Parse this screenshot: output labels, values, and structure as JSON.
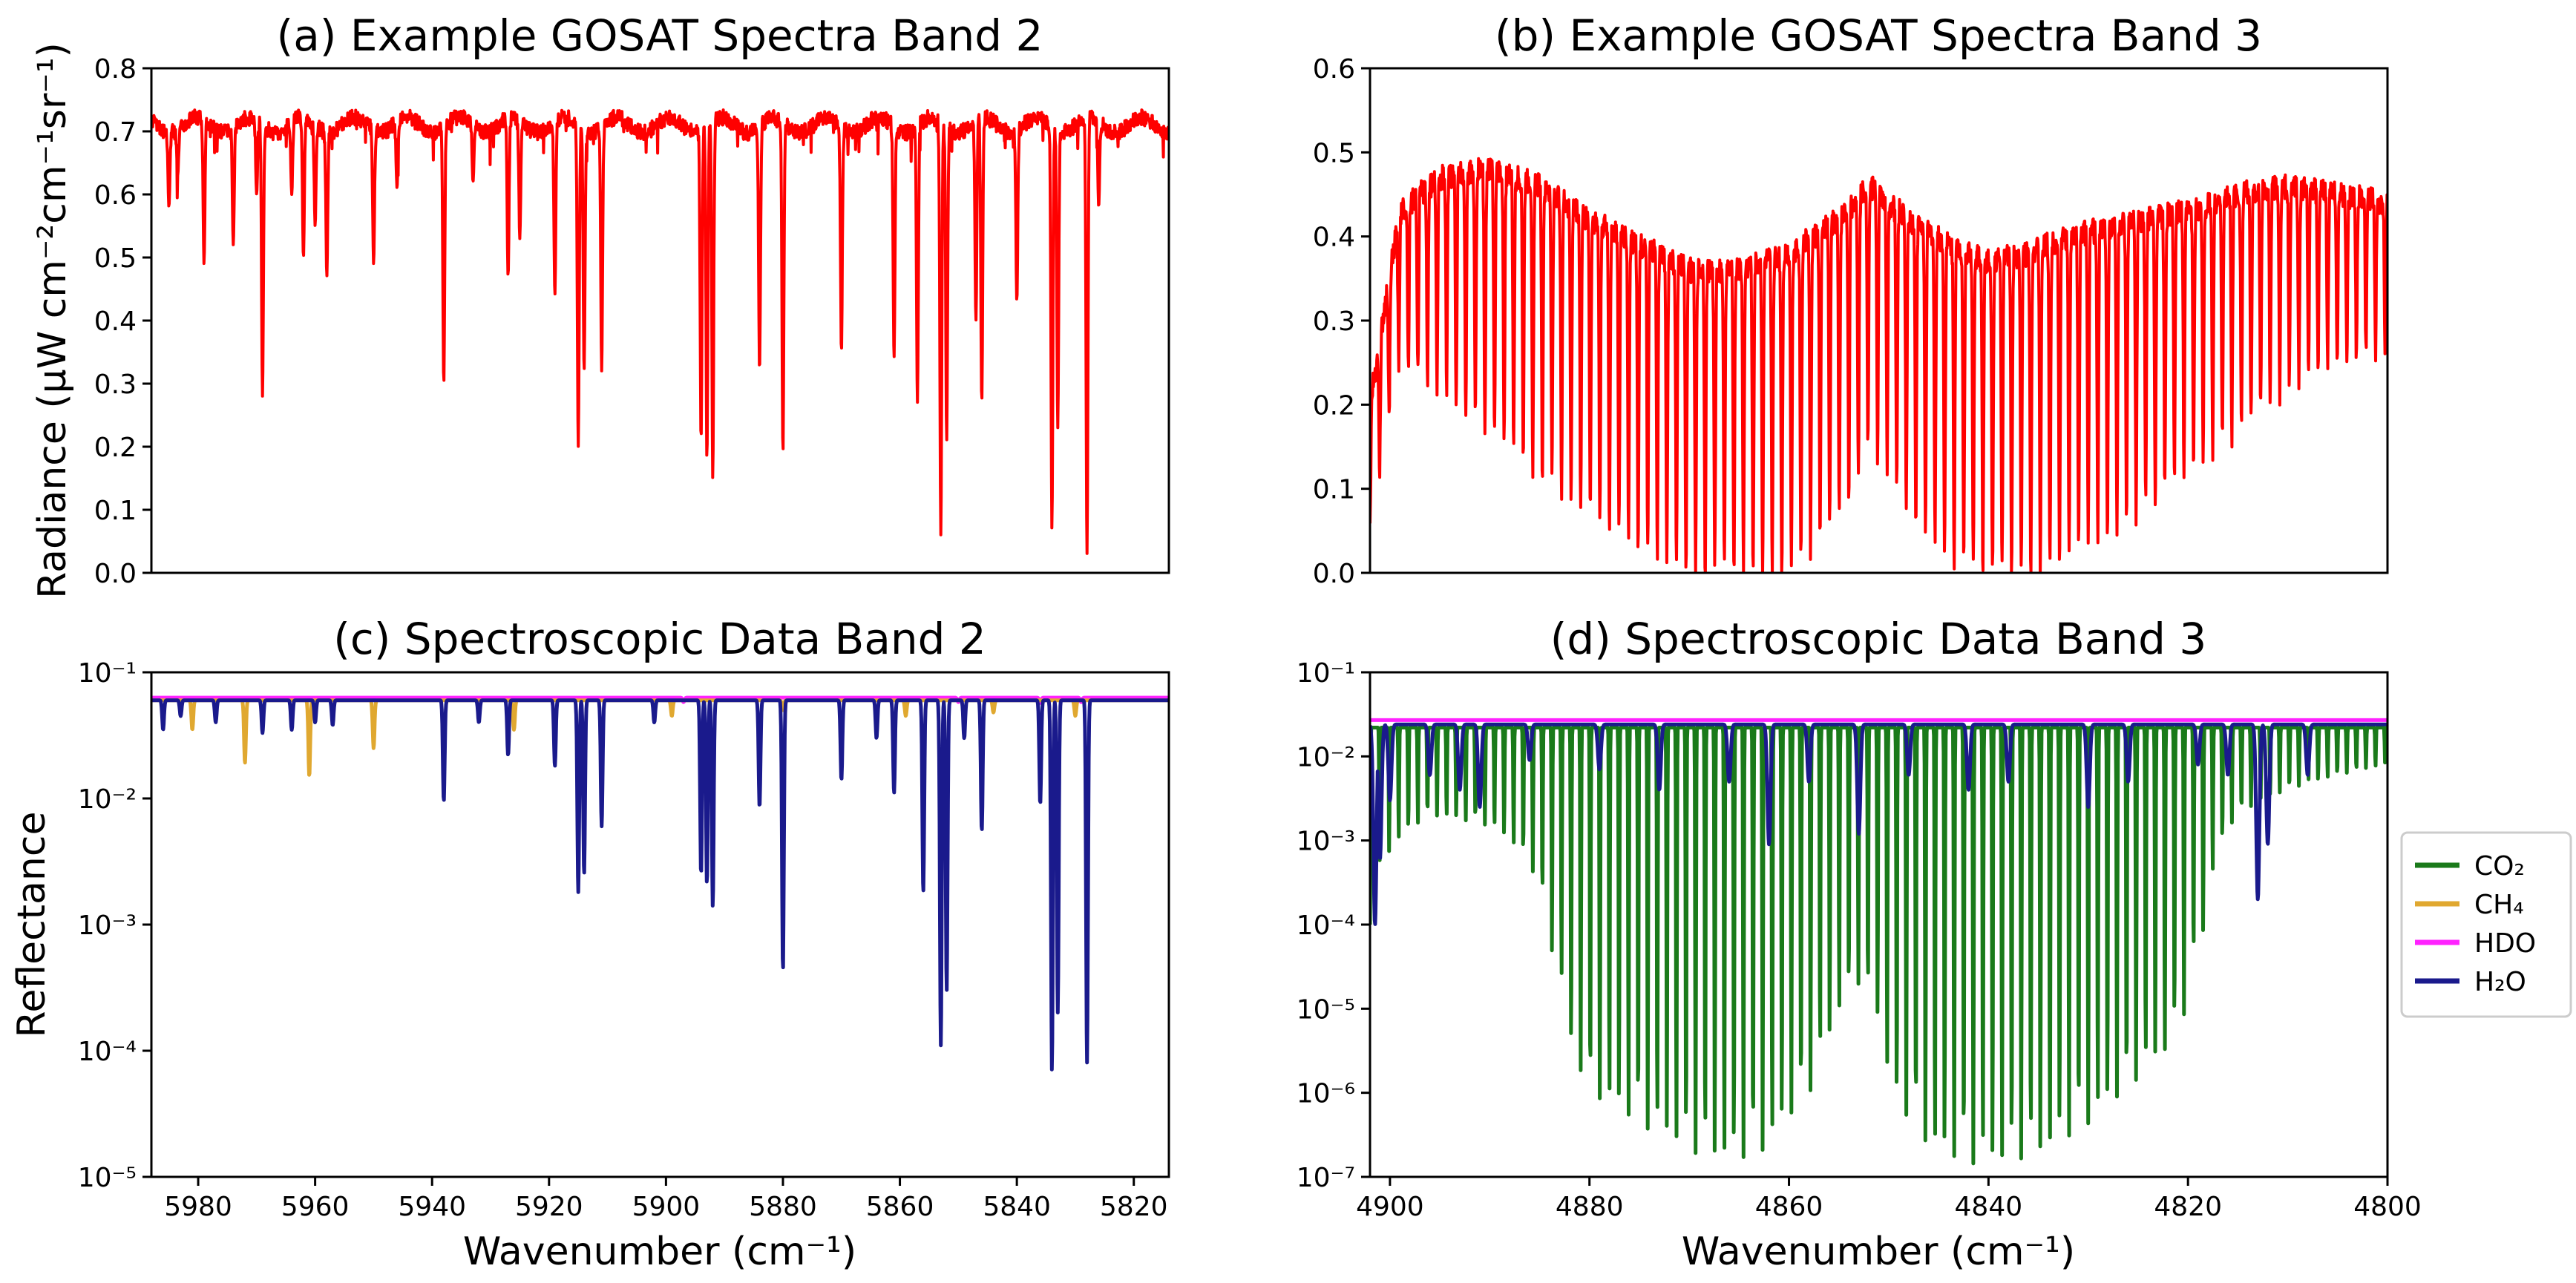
{
  "figure": {
    "shared_ylabel_top": "Radiance (μW cm⁻²cm⁻¹sr⁻¹)",
    "shared_ylabel_bottom": "Reflectance",
    "xlabel_left": "Wavenumber (cm⁻¹)",
    "xlabel_right": "Wavenumber (cm⁻¹)"
  },
  "legend": {
    "placement": "right",
    "entries": [
      {
        "label": "CO₂",
        "color": "#1a7a1a"
      },
      {
        "label": "CH₄",
        "color": "#e0a830"
      },
      {
        "label": "HDO",
        "color": "#ff22ff"
      },
      {
        "label": "H₂O",
        "color": "#1a1a8c"
      }
    ]
  },
  "chart_data": [
    {
      "id": "a",
      "type": "line",
      "title": "(a) Example GOSAT Spectra Band 2",
      "xlabel": "",
      "ylabel": "Radiance (μW cm⁻²cm⁻¹sr⁻¹)",
      "xlim": [
        5988,
        5814
      ],
      "ylim": [
        0.0,
        0.8
      ],
      "yscale": "linear",
      "x_ticks": [],
      "y_ticks": [
        "0.0",
        "0.1",
        "0.2",
        "0.3",
        "0.4",
        "0.5",
        "0.6",
        "0.7",
        "0.8"
      ],
      "series": [
        {
          "name": "radiance",
          "color": "#ff0000",
          "baseline": 0.71,
          "x_start": 5988,
          "x_end": 5814,
          "absorption_lines": [
            [
              5985,
              0.58
            ],
            [
              5983.5,
              0.63
            ],
            [
              5979,
              0.49
            ],
            [
              5974,
              0.52
            ],
            [
              5970,
              0.6
            ],
            [
              5969,
              0.28
            ],
            [
              5964,
              0.6
            ],
            [
              5962,
              0.5
            ],
            [
              5960,
              0.55
            ],
            [
              5958,
              0.47
            ],
            [
              5950,
              0.49
            ],
            [
              5946,
              0.61
            ],
            [
              5938,
              0.3
            ],
            [
              5933,
              0.62
            ],
            [
              5927,
              0.47
            ],
            [
              5925,
              0.53
            ],
            [
              5919,
              0.44
            ],
            [
              5915,
              0.2
            ],
            [
              5914,
              0.32
            ],
            [
              5911,
              0.32
            ],
            [
              5894,
              0.21
            ],
            [
              5893,
              0.18
            ],
            [
              5892,
              0.15
            ],
            [
              5884,
              0.32
            ],
            [
              5880,
              0.19
            ],
            [
              5870,
              0.35
            ],
            [
              5861,
              0.34
            ],
            [
              5857,
              0.27
            ],
            [
              5853,
              0.06
            ],
            [
              5852,
              0.21
            ],
            [
              5847,
              0.4
            ],
            [
              5846,
              0.27
            ],
            [
              5840,
              0.43
            ],
            [
              5834,
              0.07
            ],
            [
              5833,
              0.23
            ],
            [
              5828,
              0.03
            ],
            [
              5826,
              0.58
            ]
          ]
        }
      ]
    },
    {
      "id": "b",
      "type": "line",
      "title": "(b) Example GOSAT Spectra Band 3",
      "xlabel": "",
      "ylabel": "",
      "xlim": [
        4902,
        4800
      ],
      "ylim": [
        0.0,
        0.6
      ],
      "yscale": "linear",
      "x_ticks": [],
      "y_ticks": [
        "0.0",
        "0.1",
        "0.2",
        "0.3",
        "0.4",
        "0.5",
        "0.6"
      ],
      "series": [
        {
          "name": "radiance",
          "color": "#ff0000",
          "envelope_x": [
            4902,
            4899,
            4895,
            4890,
            4885,
            4880,
            4875,
            4870,
            4865,
            4860,
            4855,
            4852,
            4848,
            4844,
            4840,
            4836,
            4832,
            4828,
            4824,
            4820,
            4815,
            4810,
            4805,
            4800
          ],
          "envelope_top": [
            0.2,
            0.43,
            0.47,
            0.48,
            0.46,
            0.42,
            0.39,
            0.36,
            0.36,
            0.38,
            0.42,
            0.46,
            0.42,
            0.39,
            0.37,
            0.38,
            0.4,
            0.41,
            0.42,
            0.43,
            0.45,
            0.46,
            0.45,
            0.44
          ],
          "envelope_bottom": [
            0.05,
            0.25,
            0.22,
            0.16,
            0.12,
            0.07,
            0.03,
            0.0,
            0.0,
            0.0,
            0.06,
            0.16,
            0.07,
            0.02,
            0.0,
            0.0,
            0.02,
            0.05,
            0.08,
            0.12,
            0.17,
            0.22,
            0.25,
            0.27
          ],
          "line_spacing": 0.96
        }
      ]
    },
    {
      "id": "c",
      "type": "line",
      "title": "(c) Spectroscopic Data Band 2",
      "xlabel": "Wavenumber (cm⁻¹)",
      "ylabel": "Reflectance",
      "xlim": [
        5988,
        5814
      ],
      "ylim": [
        1e-05,
        0.1
      ],
      "yscale": "log",
      "x_ticks": [
        "5980",
        "5960",
        "5940",
        "5920",
        "5900",
        "5880",
        "5860",
        "5840",
        "5820"
      ],
      "x_tick_values": [
        5980,
        5960,
        5940,
        5920,
        5900,
        5880,
        5860,
        5840,
        5820
      ],
      "y_ticks": [
        "10⁻⁵",
        "10⁻⁴",
        "10⁻³",
        "10⁻²",
        "10⁻¹"
      ],
      "y_tick_exponents": [
        -5,
        -4,
        -3,
        -2,
        -1
      ],
      "series": [
        {
          "name": "HDO",
          "color": "#ff22ff",
          "baseline": 0.063,
          "absorption_lines": [
            [
              5897,
              0.058
            ],
            [
              5850,
              0.058
            ],
            [
              5836,
              0.057
            ],
            [
              5829,
              0.058
            ]
          ]
        },
        {
          "name": "CH₄",
          "color": "#e0a830",
          "baseline": 0.06,
          "absorption_lines": [
            [
              5981,
              0.035
            ],
            [
              5972,
              0.019
            ],
            [
              5961,
              0.015
            ],
            [
              5950,
              0.025
            ],
            [
              5926,
              0.035
            ],
            [
              5899,
              0.045
            ],
            [
              5880,
              0.05
            ],
            [
              5859,
              0.045
            ],
            [
              5844,
              0.048
            ],
            [
              5830,
              0.045
            ]
          ]
        },
        {
          "name": "H₂O",
          "color": "#1a1a8c",
          "baseline": 0.06,
          "absorption_lines": [
            [
              5986,
              0.035
            ],
            [
              5983,
              0.045
            ],
            [
              5977,
              0.04
            ],
            [
              5969,
              0.033
            ],
            [
              5964,
              0.035
            ],
            [
              5960,
              0.04
            ],
            [
              5957,
              0.038
            ],
            [
              5938,
              0.0095
            ],
            [
              5932,
              0.04
            ],
            [
              5927,
              0.022
            ],
            [
              5919,
              0.018
            ],
            [
              5915,
              0.0018
            ],
            [
              5914,
              0.0025
            ],
            [
              5911,
              0.006
            ],
            [
              5902,
              0.04
            ],
            [
              5894,
              0.0025
            ],
            [
              5893,
              0.0021
            ],
            [
              5892,
              0.0014
            ],
            [
              5884,
              0.0085
            ],
            [
              5880,
              0.00043
            ],
            [
              5870,
              0.014
            ],
            [
              5864,
              0.03
            ],
            [
              5861,
              0.011
            ],
            [
              5856,
              0.0018
            ],
            [
              5853,
              0.00011
            ],
            [
              5852,
              0.0003
            ],
            [
              5849,
              0.03
            ],
            [
              5846,
              0.0055
            ],
            [
              5836,
              0.009
            ],
            [
              5834,
              7e-05
            ],
            [
              5833,
              0.0002
            ],
            [
              5828,
              8e-05
            ]
          ]
        }
      ]
    },
    {
      "id": "d",
      "type": "line",
      "title": "(d) Spectroscopic Data Band 3",
      "xlabel": "Wavenumber (cm⁻¹)",
      "ylabel": "",
      "xlim": [
        4902,
        4800
      ],
      "ylim": [
        1e-07,
        0.1
      ],
      "yscale": "log",
      "x_ticks": [
        "4900",
        "4880",
        "4860",
        "4840",
        "4820",
        "4800"
      ],
      "x_tick_values": [
        4900,
        4880,
        4860,
        4840,
        4820,
        4800
      ],
      "y_ticks": [
        "10⁻⁷",
        "10⁻⁶",
        "10⁻⁵",
        "10⁻⁴",
        "10⁻³",
        "10⁻²",
        "10⁻¹"
      ],
      "y_tick_exponents": [
        -7,
        -6,
        -5,
        -4,
        -3,
        -2,
        -1
      ],
      "series": [
        {
          "name": "CO₂",
          "color": "#1a7a1a",
          "baseline": 0.022,
          "min_envelope_x": [
            4902,
            4896,
            4890,
            4886,
            4884,
            4882,
            4880,
            4875,
            4870,
            4866,
            4862,
            4858,
            4856,
            4853,
            4850,
            4846,
            4842,
            4838,
            4834,
            4830,
            4826,
            4822,
            4820,
            4818,
            4815,
            4810,
            4805,
            4800
          ],
          "min_envelope_y": [
            0.0001,
            0.002,
            0.0015,
            0.0005,
            5e-05,
            3e-06,
            9e-07,
            4e-07,
            2e-07,
            1.5e-07,
            2e-07,
            8e-07,
            4e-06,
            2e-05,
            8e-07,
            2e-07,
            1.4e-07,
            1.5e-07,
            2e-07,
            4e-07,
            1e-06,
            3e-06,
            1e-05,
            0.0001,
            0.002,
            0.004,
            0.006,
            0.008
          ],
          "line_spacing": 0.96
        },
        {
          "name": "HDO",
          "color": "#ff22ff",
          "baseline": 0.027,
          "absorption_lines": []
        },
        {
          "name": "H₂O",
          "color": "#1a1a8c",
          "baseline": 0.024,
          "absorption_lines": [
            [
              4901.5,
              0.0001
            ],
            [
              4901,
              0.0006
            ],
            [
              4900,
              0.003
            ],
            [
              4896,
              0.006
            ],
            [
              4893,
              0.004
            ],
            [
              4891,
              0.0025
            ],
            [
              4886,
              0.009
            ],
            [
              4879,
              0.007
            ],
            [
              4873,
              0.004
            ],
            [
              4866,
              0.005
            ],
            [
              4862,
              0.0009
            ],
            [
              4858,
              0.005
            ],
            [
              4853,
              0.0012
            ],
            [
              4848,
              0.006
            ],
            [
              4842,
              0.004
            ],
            [
              4838,
              0.005
            ],
            [
              4830,
              0.0025
            ],
            [
              4826,
              0.005
            ],
            [
              4819,
              0.008
            ],
            [
              4816,
              0.006
            ],
            [
              4813,
              0.0002
            ],
            [
              4812,
              0.0009
            ],
            [
              4808,
              0.006
            ]
          ]
        }
      ]
    }
  ]
}
